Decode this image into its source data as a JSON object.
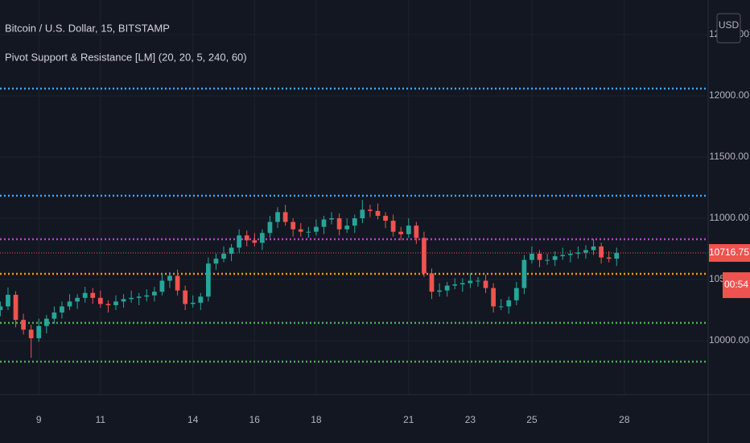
{
  "chart_data": {
    "type": "candlestick",
    "title": "Bitcoin / U.S. Dollar, 15, BITSTAMP",
    "subtitle": "Pivot Support & Resistance [LM] (20, 20, 5, 240, 60)",
    "currency": "USD",
    "up_color": "#26a69a",
    "down_color": "#ef5350",
    "grid": true,
    "xlim": [
      7.74,
      30.72
    ],
    "xticks": [
      9,
      11,
      14,
      16,
      18,
      21,
      23,
      25,
      28
    ],
    "ylim": [
      9559,
      12783
    ],
    "yticks": [
      {
        "value": 10000,
        "label": "10000.00"
      },
      {
        "value": 10500,
        "label": "10500.00"
      },
      {
        "value": 11000,
        "label": "11000.00"
      },
      {
        "value": 11500,
        "label": "11500.00"
      },
      {
        "value": 12000,
        "label": "12000.00"
      },
      {
        "value": 12500,
        "label": "12500.00"
      }
    ],
    "levels": [
      {
        "value": 12059,
        "color": "#42a5f5"
      },
      {
        "value": 11184,
        "color": "#42a5f5"
      },
      {
        "value": 10829,
        "color": "#c23bd4"
      },
      {
        "value": 10546,
        "color": "#ff9800"
      },
      {
        "value": 10145,
        "color": "#4caf50"
      },
      {
        "value": 9829,
        "color": "#4caf50"
      }
    ],
    "last_price": 10716.75,
    "countdown": "00:54",
    "x": [
      7.75,
      8,
      8.25,
      8.5,
      8.75,
      9,
      9.25,
      9.5,
      9.75,
      10,
      10.25,
      10.5,
      10.75,
      11,
      11.25,
      11.5,
      11.75,
      12,
      12.25,
      12.5,
      12.75,
      13,
      13.25,
      13.5,
      13.75,
      14,
      14.25,
      14.5,
      14.75,
      15,
      15.25,
      15.5,
      15.75,
      16,
      16.25,
      16.5,
      16.75,
      17,
      17.25,
      17.5,
      17.75,
      18,
      18.25,
      18.5,
      18.75,
      19,
      19.25,
      19.5,
      19.75,
      20,
      20.25,
      20.5,
      20.75,
      21,
      21.25,
      21.5,
      21.75,
      22,
      22.25,
      22.5,
      22.75,
      23,
      23.25,
      23.5,
      23.75,
      24,
      24.25,
      24.5,
      24.75,
      25,
      25.25,
      25.5,
      25.75,
      26,
      26.25,
      26.5,
      26.75,
      27,
      27.25,
      27.5,
      27.75
    ],
    "open": [
      10250,
      10280,
      10375,
      10170,
      10090,
      10020,
      10120,
      10180,
      10230,
      10280,
      10320,
      10350,
      10390,
      10350,
      10300,
      10290,
      10320,
      10340,
      10350,
      10360,
      10370,
      10400,
      10490,
      10530,
      10410,
      10300,
      10310,
      10360,
      10630,
      10670,
      10710,
      10760,
      10860,
      10820,
      10800,
      10880,
      10970,
      11050,
      10970,
      10910,
      10890,
      10890,
      10930,
      10990,
      11000,
      10910,
      10940,
      11000,
      11070,
      11060,
      11020,
      10980,
      10890,
      10870,
      10940,
      10840,
      10550,
      10400,
      10410,
      10450,
      10460,
      10470,
      10490,
      10490,
      10430,
      10280,
      10280,
      10330,
      10430,
      10660,
      10710,
      10660,
      10660,
      10690,
      10700,
      10710,
      10720,
      10740,
      10770,
      10680,
      10670
    ],
    "high": [
      10320,
      10435,
      10405,
      10220,
      10130,
      10180,
      10210,
      10280,
      10320,
      10380,
      10380,
      10440,
      10430,
      10410,
      10330,
      10370,
      10380,
      10410,
      10390,
      10420,
      10440,
      10550,
      10560,
      10580,
      10450,
      10370,
      10390,
      10680,
      10710,
      10770,
      10790,
      10910,
      10900,
      10880,
      10910,
      11020,
      11090,
      11110,
      11000,
      10960,
      10930,
      10990,
      11020,
      11050,
      11040,
      11000,
      11030,
      11150,
      11110,
      11120,
      11050,
      11030,
      10930,
      11000,
      10970,
      10890,
      10590,
      10470,
      10480,
      10510,
      10510,
      10550,
      10520,
      10540,
      10470,
      10340,
      10360,
      10480,
      10700,
      10770,
      10740,
      10710,
      10730,
      10760,
      10740,
      10770,
      10780,
      10830,
      10800,
      10730,
      10760
    ],
    "low": [
      10200,
      10250,
      10110,
      10050,
      9860,
      9990,
      10060,
      10140,
      10180,
      10250,
      10260,
      10310,
      10300,
      10270,
      10230,
      10250,
      10270,
      10310,
      10290,
      10320,
      10320,
      10370,
      10430,
      10370,
      10250,
      10270,
      10250,
      10320,
      10580,
      10640,
      10650,
      10720,
      10770,
      10770,
      10740,
      10840,
      10920,
      10940,
      10850,
      10850,
      10840,
      10860,
      10870,
      10950,
      10860,
      10880,
      10880,
      10960,
      11010,
      10990,
      10920,
      10850,
      10820,
      10840,
      10790,
      10520,
      10340,
      10360,
      10360,
      10420,
      10400,
      10430,
      10440,
      10390,
      10230,
      10250,
      10220,
      10290,
      10380,
      10630,
      10600,
      10620,
      10610,
      10660,
      10640,
      10670,
      10670,
      10700,
      10630,
      10640,
      10610
    ],
    "close": [
      10280,
      10375,
      10170,
      10090,
      10020,
      10120,
      10180,
      10230,
      10280,
      10320,
      10350,
      10390,
      10350,
      10300,
      10290,
      10320,
      10340,
      10350,
      10360,
      10370,
      10400,
      10490,
      10530,
      10410,
      10300,
      10310,
      10360,
      10630,
      10670,
      10710,
      10760,
      10860,
      10820,
      10800,
      10880,
      10970,
      11050,
      10970,
      10910,
      10890,
      10890,
      10930,
      10990,
      11000,
      10910,
      10940,
      11000,
      11070,
      11060,
      11020,
      10980,
      10890,
      10870,
      10940,
      10840,
      10550,
      10400,
      10410,
      10450,
      10460,
      10470,
      10490,
      10490,
      10430,
      10280,
      10280,
      10330,
      10430,
      10660,
      10710,
      10660,
      10660,
      10690,
      10700,
      10710,
      10720,
      10740,
      10770,
      10680,
      10670,
      10716.75
    ]
  }
}
